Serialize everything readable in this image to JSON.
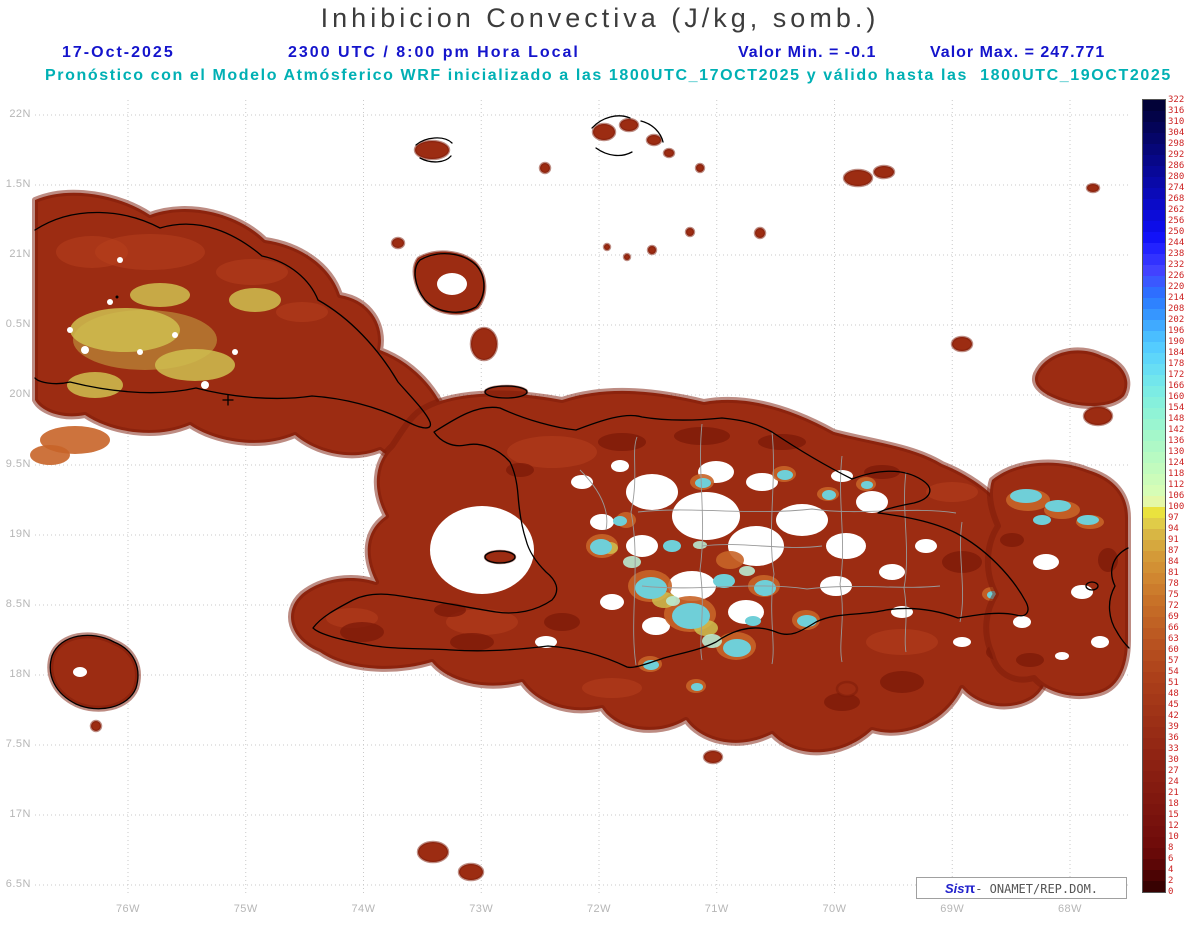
{
  "title": "Inhibicion Convectiva (J/kg, somb.)",
  "header": {
    "date": "17-Oct-2025",
    "time_line": "2300 UTC / 8:00 pm Hora Local",
    "min_value_label": "Valor Min. = -0.1",
    "max_value_label": "Valor Max. = 247.771",
    "forecast_line": "Pronóstico con el Modelo Atmósferico WRF inicializado a las 1800UTC_17OCT2025 y válido hasta las  1800UTC_19OCT2025"
  },
  "map": {
    "lat_labels": [
      "22N",
      "1.5N",
      "21N",
      "0.5N",
      "20N",
      "9.5N",
      "19N",
      "8.5N",
      "18N",
      "7.5N",
      "17N",
      "6.5N"
    ],
    "lon_labels": [
      "76W",
      "75W",
      "74W",
      "73W",
      "72W",
      "71W",
      "70W",
      "69W",
      "68W"
    ]
  },
  "colorbar": {
    "labels": [
      "322",
      "316",
      "310",
      "304",
      "298",
      "292",
      "286",
      "280",
      "274",
      "268",
      "262",
      "256",
      "250",
      "244",
      "238",
      "232",
      "226",
      "220",
      "214",
      "208",
      "202",
      "196",
      "190",
      "184",
      "178",
      "172",
      "166",
      "160",
      "154",
      "148",
      "142",
      "136",
      "130",
      "124",
      "118",
      "112",
      "106",
      "100",
      "97",
      "94",
      "91",
      "87",
      "84",
      "81",
      "78",
      "75",
      "72",
      "69",
      "66",
      "63",
      "60",
      "57",
      "54",
      "51",
      "48",
      "45",
      "42",
      "39",
      "36",
      "33",
      "30",
      "27",
      "24",
      "21",
      "18",
      "15",
      "12",
      "10",
      "8",
      "6",
      "4",
      "2",
      "0"
    ],
    "colors": [
      "#020238",
      "#030348",
      "#040458",
      "#050568",
      "#060678",
      "#070788",
      "#080898",
      "#0909a8",
      "#0a0ab8",
      "#0b0bc8",
      "#0c0cd8",
      "#0d0de8",
      "#1212f8",
      "#2222ff",
      "#3232ff",
      "#4242ff",
      "#3a58ff",
      "#2e6eff",
      "#2e82ff",
      "#3696ff",
      "#40aaff",
      "#4abeff",
      "#54ccff",
      "#5ed6fa",
      "#68def4",
      "#72e6ec",
      "#7cece4",
      "#86f0dc",
      "#90f3d6",
      "#9af5d0",
      "#a4f7ca",
      "#aef8c6",
      "#b8fac2",
      "#c2fbbe",
      "#ccfcba",
      "#d6fdb6",
      "#e4f8a8",
      "#eae23e",
      "#e0cc48",
      "#d8b644",
      "#d6a83e",
      "#d49a38",
      "#d29034",
      "#d08630",
      "#cc7c2c",
      "#c87228",
      "#c46a26",
      "#c06224",
      "#bc5a22",
      "#b85220",
      "#b44c1e",
      "#b0461c",
      "#ac401a",
      "#a83c19",
      "#a43818",
      "#a03417",
      "#9c3016",
      "#982c15",
      "#942814",
      "#902413",
      "#8c2112",
      "#881e11",
      "#841b10",
      "#80180f",
      "#7c150e",
      "#78120d",
      "#740f0c",
      "#700c0a",
      "#680908",
      "#5c0606",
      "#4c0404",
      "#380202"
    ]
  },
  "credit": {
    "system_name": "Sis",
    "system_symbol": "π",
    "org": "- ONAMET/REP.DOM."
  },
  "colors": {
    "title_text": "#3c3c3c",
    "header_blue": "#1414cc",
    "forecast_cyan": "#00b0b4",
    "axis_gray": "#b6b6b6",
    "colorbar_label": "#cc2222",
    "land": "#9c2c12",
    "land_dark": "#7c1a08",
    "land_light": "#b6401e",
    "land_orange": "#c86428",
    "patch_yellow": "#cfc050",
    "patch_cyan": "#6fcfd8",
    "patch_mint": "#b9ead2",
    "coast": "#000000",
    "province": "#999999",
    "grid": "#c9c9c9",
    "credit_blue": "#2222cc",
    "credit_gray": "#555555"
  }
}
